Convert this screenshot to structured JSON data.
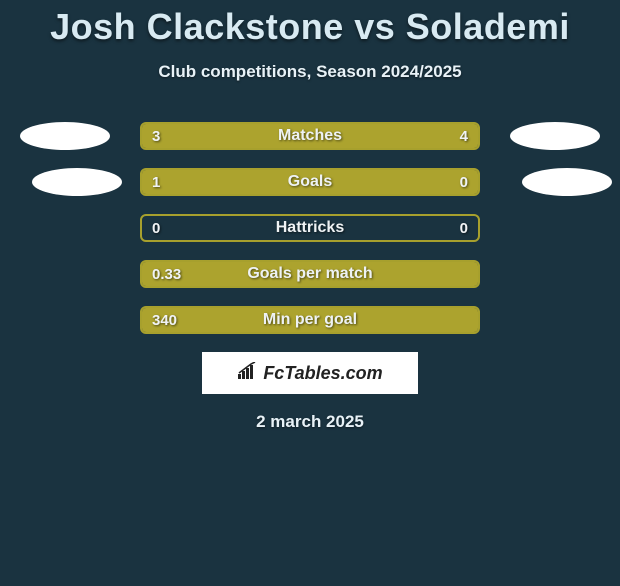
{
  "title": "Josh Clackstone vs Solademi",
  "subtitle": "Club competitions, Season 2024/2025",
  "date": "2 march 2025",
  "logo": "FcTables.com",
  "colors": {
    "background": "#1a3340",
    "bar_fill": "#aca32e",
    "bar_border": "#a7a02d",
    "avatar": "#ffffff",
    "text": "#e8f2f7",
    "title_text": "#d8eaf2"
  },
  "fonts": {
    "title_size": 36,
    "subtitle_size": 17,
    "bar_label_size": 16,
    "bar_value_size": 15
  },
  "rows": [
    {
      "label": "Matches",
      "left_val": "3",
      "right_val": "4",
      "left_pct": 40,
      "right_pct": 60,
      "show_avatars": true
    },
    {
      "label": "Goals",
      "left_val": "1",
      "right_val": "0",
      "left_pct": 78,
      "right_pct": 22,
      "show_avatars": true
    },
    {
      "label": "Hattricks",
      "left_val": "0",
      "right_val": "0",
      "left_pct": 0,
      "right_pct": 0,
      "show_avatars": false
    },
    {
      "label": "Goals per match",
      "left_val": "0.33",
      "right_val": "",
      "left_pct": 100,
      "right_pct": 0,
      "show_avatars": false
    },
    {
      "label": "Min per goal",
      "left_val": "340",
      "right_val": "",
      "left_pct": 100,
      "right_pct": 0,
      "show_avatars": false
    }
  ]
}
